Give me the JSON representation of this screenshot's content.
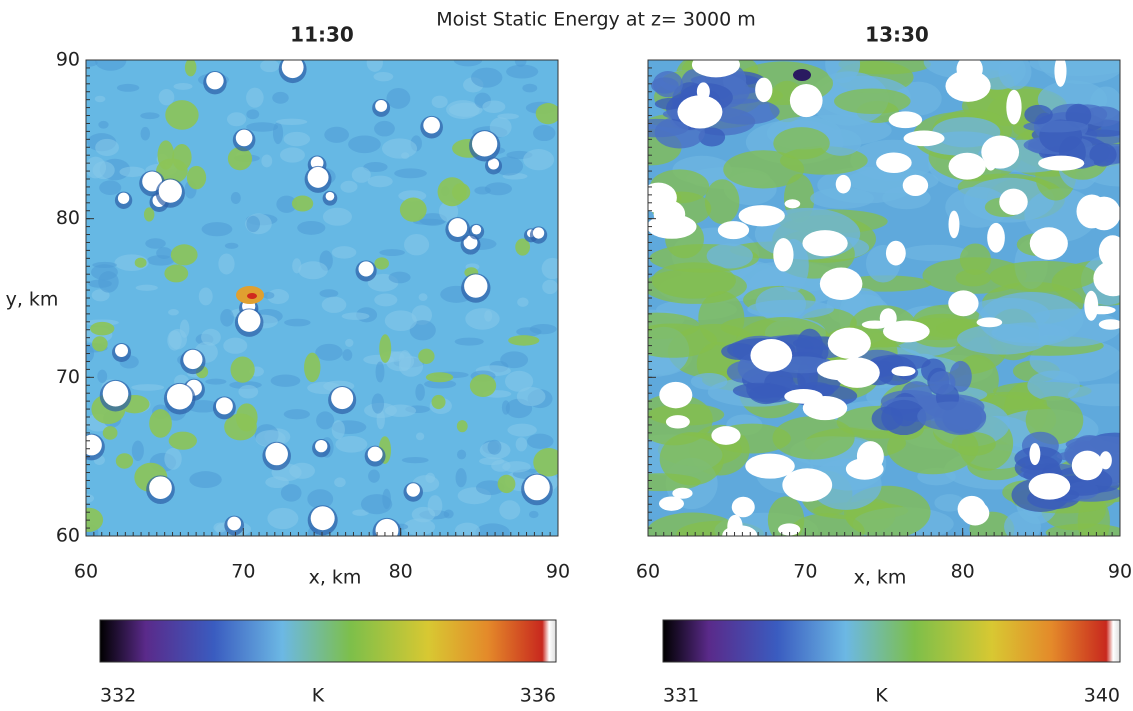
{
  "title": "Moist Static Energy at z= 3000 m",
  "chart_data": [
    {
      "type": "heatmap",
      "title": "11:30",
      "xlabel": "x, km",
      "ylabel": "y, km",
      "xlim": [
        60,
        90
      ],
      "ylim": [
        60,
        90
      ],
      "xticks": [
        60,
        70,
        80,
        90
      ],
      "yticks": [
        60,
        70,
        80,
        90
      ],
      "ytick_labels": true,
      "colorbar": {
        "lim": [
          332,
          336
        ],
        "label": "K",
        "ticks": [
          332,
          336
        ]
      }
    },
    {
      "type": "heatmap",
      "title": "13:30",
      "xlabel": "x, km",
      "xlim": [
        60,
        90
      ],
      "ylim": [
        60,
        90
      ],
      "xticks": [
        60,
        70,
        80,
        90
      ],
      "yticks": [
        60,
        70,
        80,
        90
      ],
      "ytick_labels": false,
      "colorbar": {
        "lim": [
          331,
          340
        ],
        "label": "K",
        "ticks": [
          331,
          340
        ]
      }
    }
  ]
}
